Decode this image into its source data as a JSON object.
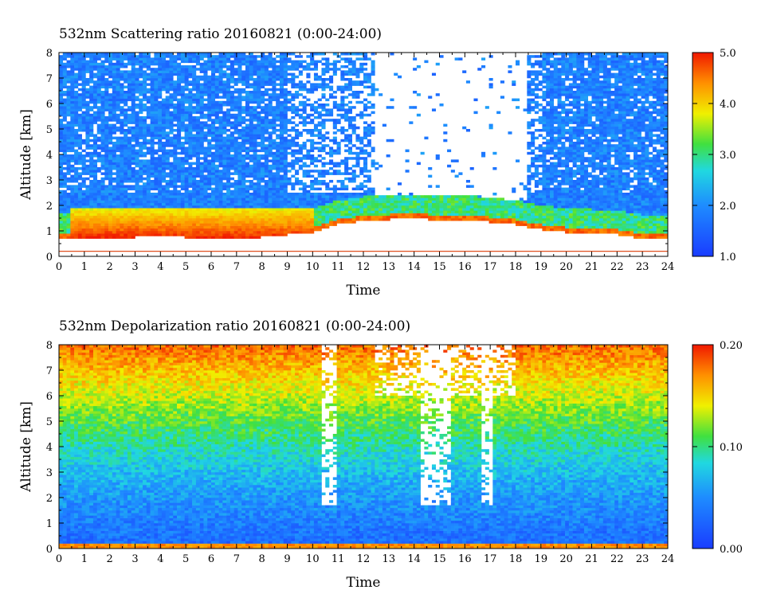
{
  "chart_data": [
    {
      "type": "heatmap",
      "title": "532nm Scattering ratio  20160821 (0:00-24:00)",
      "xlabel": "Time",
      "ylabel": "Altitude [km]",
      "xlim": [
        0,
        24
      ],
      "ylim": [
        0,
        8
      ],
      "x_ticks": [
        "0",
        "1",
        "2",
        "3",
        "4",
        "5",
        "6",
        "7",
        "8",
        "9",
        "10",
        "11",
        "12",
        "13",
        "14",
        "15",
        "16",
        "17",
        "18",
        "19",
        "20",
        "21",
        "22",
        "23",
        "24"
      ],
      "y_ticks": [
        "0",
        "1",
        "2",
        "3",
        "4",
        "5",
        "6",
        "7",
        "8"
      ],
      "colorbar": {
        "range": [
          1.0,
          5.0
        ],
        "ticks": [
          "1.0",
          "2.0",
          "3.0",
          "4.0",
          "5.0"
        ]
      },
      "colors": {
        "low": "#2040ff",
        "mid": "#20d0e0",
        "high": "#f02000",
        "missing": "#ffffff",
        "ground_line": "#e05020"
      },
      "features": {
        "boundary_layer_top_km": [
          [
            0,
            0.75
          ],
          [
            1,
            0.8
          ],
          [
            2,
            0.8
          ],
          [
            3,
            0.8
          ],
          [
            4,
            0.85
          ],
          [
            5,
            0.8
          ],
          [
            6,
            0.8
          ],
          [
            7,
            0.75
          ],
          [
            8,
            0.8
          ],
          [
            9,
            0.9
          ],
          [
            10,
            1.0
          ],
          [
            11,
            1.3
          ],
          [
            12,
            1.45
          ],
          [
            13,
            1.5
          ],
          [
            14,
            1.55
          ],
          [
            15,
            1.45
          ],
          [
            16,
            1.5
          ],
          [
            17,
            1.4
          ],
          [
            18,
            1.3
          ],
          [
            19,
            1.1
          ],
          [
            20,
            1.0
          ],
          [
            21,
            0.95
          ],
          [
            22,
            0.9
          ],
          [
            23,
            0.75
          ],
          [
            24,
            0.7
          ]
        ],
        "strong_aerosol_layer": {
          "from_hour": 0.5,
          "to_hour": 10,
          "altitude_km": [
            0.7,
            1.9
          ]
        }
      }
    },
    {
      "type": "heatmap",
      "title": "532nm Depolarization ratio  20160821 (0:00-24:00)",
      "xlabel": "Time",
      "ylabel": "Altitude [km]",
      "xlim": [
        0,
        24
      ],
      "ylim": [
        0,
        8
      ],
      "x_ticks": [
        "0",
        "1",
        "2",
        "3",
        "4",
        "5",
        "6",
        "7",
        "8",
        "9",
        "10",
        "11",
        "12",
        "13",
        "14",
        "15",
        "16",
        "17",
        "18",
        "19",
        "20",
        "21",
        "22",
        "23",
        "24"
      ],
      "y_ticks": [
        "0",
        "1",
        "2",
        "3",
        "4",
        "5",
        "6",
        "7",
        "8"
      ],
      "colorbar": {
        "range": [
          0.0,
          0.2
        ],
        "ticks": [
          "0.00",
          "0.10",
          "0.20"
        ]
      },
      "colors": {
        "low": "#2040ff",
        "mid": "#20d0e0",
        "high": "#f02000",
        "missing": "#ffffff"
      },
      "features": {
        "depolarization_increases_with_altitude": true,
        "near_surface_value": 0.03,
        "upper_level_value": 0.18
      }
    }
  ]
}
